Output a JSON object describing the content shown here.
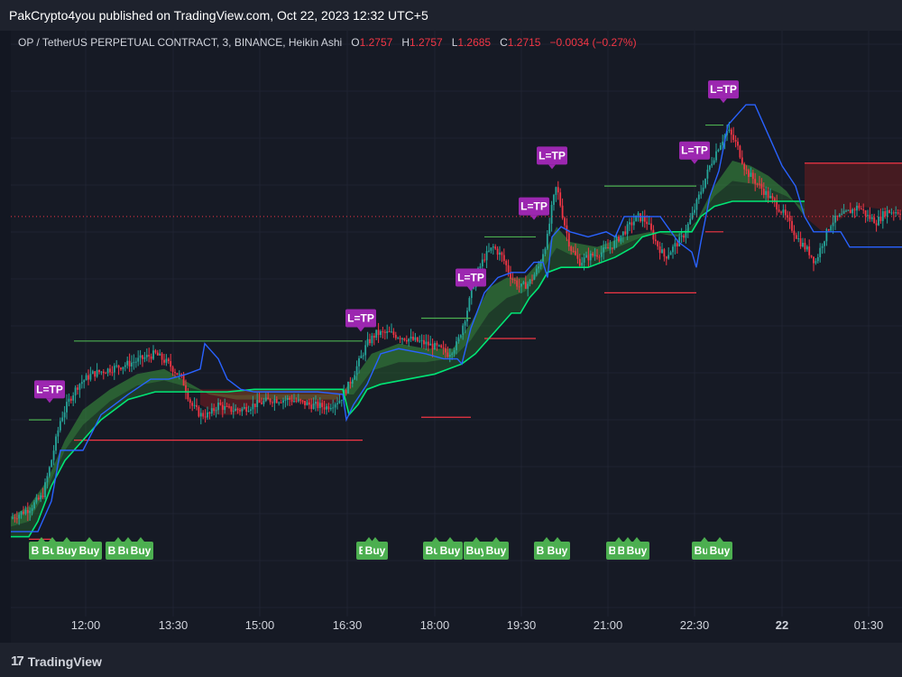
{
  "header": {
    "published": "PakCrypto4you published on TradingView.com, Oct 22, 2023 12:32 UTC+5"
  },
  "legend": {
    "symbol": "OP / TetherUS PERPETUAL CONTRACT, 3, BINANCE, Heikin Ashi",
    "o_label": "O",
    "o": "1.2757",
    "h_label": "H",
    "h": "1.2757",
    "l_label": "L",
    "l": "1.2685",
    "c_label": "C",
    "c": "1.2715",
    "change": "−0.0034 (−0.27%)"
  },
  "footer": {
    "brand": "TradingView"
  },
  "colors": {
    "background": "#131722",
    "panel": "#161a25",
    "grid": "#1f2331",
    "bull": "#26a69a",
    "bull_bright": "#4caf50",
    "bear": "#f23645",
    "blue_line": "#2962ff",
    "green_line": "#00e676",
    "label_purple": "#9c27b0",
    "label_green": "#4caf50"
  },
  "chart_data": {
    "type": "line",
    "xlabel": "",
    "ylabel": "",
    "x_range": [
      0,
      988
    ],
    "y_range": [
      0,
      100
    ],
    "grid": true,
    "x_ticks": [
      {
        "x": 83,
        "label": "12:00",
        "bold": false
      },
      {
        "x": 180,
        "label": "13:30",
        "bold": false
      },
      {
        "x": 276,
        "label": "15:00",
        "bold": false
      },
      {
        "x": 373,
        "label": "16:30",
        "bold": false
      },
      {
        "x": 470,
        "label": "18:00",
        "bold": false
      },
      {
        "x": 566,
        "label": "19:30",
        "bold": false
      },
      {
        "x": 662,
        "label": "21:00",
        "bold": false
      },
      {
        "x": 758,
        "label": "22:30",
        "bold": false
      },
      {
        "x": 855,
        "label": "22",
        "bold": true
      },
      {
        "x": 951,
        "label": "01:30",
        "bold": false
      }
    ],
    "price_series": [
      [
        0,
        10.6
      ],
      [
        20,
        12.5
      ],
      [
        35,
        15
      ],
      [
        45,
        22
      ],
      [
        55,
        30
      ],
      [
        65,
        34
      ],
      [
        75,
        37
      ],
      [
        90,
        39
      ],
      [
        110,
        40
      ],
      [
        130,
        41
      ],
      [
        145,
        42
      ],
      [
        160,
        43
      ],
      [
        175,
        41
      ],
      [
        190,
        38
      ],
      [
        200,
        33
      ],
      [
        210,
        31
      ],
      [
        220,
        31
      ],
      [
        230,
        33
      ],
      [
        240,
        32
      ],
      [
        255,
        32
      ],
      [
        270,
        33
      ],
      [
        290,
        34
      ],
      [
        310,
        34
      ],
      [
        330,
        33
      ],
      [
        350,
        32.5
      ],
      [
        365,
        34
      ],
      [
        375,
        37
      ],
      [
        385,
        41
      ],
      [
        395,
        45
      ],
      [
        405,
        47
      ],
      [
        420,
        47
      ],
      [
        440,
        46
      ],
      [
        460,
        45
      ],
      [
        475,
        44
      ],
      [
        485,
        43
      ],
      [
        495,
        45
      ],
      [
        505,
        51
      ],
      [
        515,
        58
      ],
      [
        525,
        62
      ],
      [
        535,
        64
      ],
      [
        545,
        62
      ],
      [
        555,
        58
      ],
      [
        565,
        56
      ],
      [
        575,
        57
      ],
      [
        585,
        60
      ],
      [
        595,
        66
      ],
      [
        600,
        72
      ],
      [
        605,
        76
      ],
      [
        612,
        70
      ],
      [
        620,
        64
      ],
      [
        630,
        61
      ],
      [
        640,
        62
      ],
      [
        655,
        63
      ],
      [
        665,
        64
      ],
      [
        675,
        66
      ],
      [
        685,
        68
      ],
      [
        695,
        70
      ],
      [
        705,
        69
      ],
      [
        715,
        65
      ],
      [
        725,
        62
      ],
      [
        735,
        64
      ],
      [
        745,
        66
      ],
      [
        755,
        70
      ],
      [
        765,
        75
      ],
      [
        775,
        80
      ],
      [
        785,
        84
      ],
      [
        795,
        87
      ],
      [
        805,
        84
      ],
      [
        815,
        79
      ],
      [
        825,
        77
      ],
      [
        835,
        75
      ],
      [
        845,
        73
      ],
      [
        855,
        71
      ],
      [
        865,
        68
      ],
      [
        875,
        65
      ],
      [
        885,
        63
      ],
      [
        892,
        61
      ],
      [
        900,
        65
      ],
      [
        910,
        69
      ],
      [
        920,
        70
      ],
      [
        930,
        71
      ],
      [
        940,
        72
      ],
      [
        950,
        70
      ],
      [
        960,
        69
      ],
      [
        970,
        71
      ],
      [
        980,
        71
      ],
      [
        988,
        71
      ]
    ],
    "blue_line": [
      [
        0,
        8
      ],
      [
        30,
        8
      ],
      [
        45,
        14
      ],
      [
        55,
        24
      ],
      [
        80,
        24
      ],
      [
        100,
        31
      ],
      [
        130,
        35
      ],
      [
        155,
        38
      ],
      [
        175,
        38
      ],
      [
        195,
        39
      ],
      [
        210,
        40
      ],
      [
        215,
        45
      ],
      [
        220,
        44
      ],
      [
        230,
        42
      ],
      [
        240,
        38
      ],
      [
        255,
        36
      ],
      [
        270,
        35.5
      ],
      [
        300,
        35.5
      ],
      [
        340,
        35.5
      ],
      [
        368,
        35
      ],
      [
        372,
        30
      ],
      [
        380,
        33
      ],
      [
        395,
        37
      ],
      [
        410,
        43
      ],
      [
        430,
        44
      ],
      [
        460,
        43
      ],
      [
        480,
        42
      ],
      [
        495,
        42
      ],
      [
        500,
        41
      ],
      [
        510,
        48
      ],
      [
        525,
        55
      ],
      [
        540,
        58
      ],
      [
        555,
        59
      ],
      [
        570,
        59
      ],
      [
        580,
        61
      ],
      [
        590,
        61
      ],
      [
        595,
        58
      ],
      [
        600,
        66
      ],
      [
        610,
        68
      ],
      [
        620,
        67
      ],
      [
        640,
        66
      ],
      [
        660,
        67
      ],
      [
        670,
        66
      ],
      [
        680,
        70
      ],
      [
        700,
        70
      ],
      [
        720,
        70
      ],
      [
        740,
        65
      ],
      [
        755,
        63
      ],
      [
        760,
        60
      ],
      [
        765,
        65
      ],
      [
        775,
        74
      ],
      [
        785,
        79
      ],
      [
        795,
        88
      ],
      [
        805,
        90
      ],
      [
        815,
        92
      ],
      [
        825,
        92
      ],
      [
        835,
        88
      ],
      [
        845,
        84
      ],
      [
        855,
        80
      ],
      [
        870,
        76
      ],
      [
        880,
        70
      ],
      [
        890,
        67
      ],
      [
        900,
        67
      ],
      [
        920,
        67
      ],
      [
        930,
        64
      ],
      [
        940,
        64
      ],
      [
        988,
        64
      ]
    ],
    "green_line": [
      [
        0,
        7
      ],
      [
        20,
        7
      ],
      [
        30,
        10
      ],
      [
        45,
        17
      ],
      [
        60,
        22
      ],
      [
        80,
        26
      ],
      [
        100,
        30
      ],
      [
        130,
        34
      ],
      [
        160,
        35.5
      ],
      [
        200,
        35.5
      ],
      [
        240,
        35.5
      ],
      [
        270,
        36
      ],
      [
        300,
        36
      ],
      [
        340,
        36
      ],
      [
        368,
        36
      ],
      [
        375,
        31
      ],
      [
        385,
        33
      ],
      [
        395,
        36
      ],
      [
        410,
        37
      ],
      [
        440,
        38
      ],
      [
        470,
        39
      ],
      [
        500,
        41
      ],
      [
        515,
        43
      ],
      [
        525,
        45
      ],
      [
        540,
        48
      ],
      [
        555,
        51
      ],
      [
        565,
        51
      ],
      [
        575,
        54
      ],
      [
        585,
        56
      ],
      [
        595,
        59
      ],
      [
        610,
        60
      ],
      [
        640,
        60
      ],
      [
        670,
        62
      ],
      [
        690,
        64
      ],
      [
        700,
        66
      ],
      [
        720,
        67
      ],
      [
        740,
        67
      ],
      [
        755,
        67
      ],
      [
        765,
        70
      ],
      [
        780,
        72
      ],
      [
        800,
        73
      ],
      [
        830,
        73
      ],
      [
        860,
        73
      ],
      [
        880,
        73
      ]
    ],
    "area_upper": [
      [
        0,
        11
      ],
      [
        20,
        13
      ],
      [
        40,
        18
      ],
      [
        60,
        26
      ],
      [
        80,
        32
      ],
      [
        110,
        36
      ],
      [
        140,
        39
      ],
      [
        170,
        40
      ],
      [
        200,
        37
      ],
      [
        220,
        35
      ],
      [
        250,
        34
      ],
      [
        280,
        34
      ],
      [
        320,
        34
      ],
      [
        360,
        34
      ],
      [
        380,
        38
      ],
      [
        400,
        43
      ],
      [
        430,
        45
      ],
      [
        460,
        44
      ],
      [
        490,
        44
      ],
      [
        510,
        49
      ],
      [
        530,
        56
      ],
      [
        550,
        58
      ],
      [
        570,
        58
      ],
      [
        590,
        62
      ],
      [
        605,
        68
      ],
      [
        620,
        65
      ],
      [
        650,
        64
      ],
      [
        680,
        66
      ],
      [
        710,
        67
      ],
      [
        740,
        66
      ],
      [
        760,
        69
      ],
      [
        780,
        76
      ],
      [
        800,
        81
      ],
      [
        820,
        80
      ],
      [
        840,
        78
      ],
      [
        860,
        75
      ],
      [
        880,
        70
      ],
      [
        900,
        67
      ],
      [
        930,
        70
      ],
      [
        960,
        71
      ],
      [
        988,
        71
      ]
    ],
    "red_area": [
      [
        210,
        33
      ],
      [
        230,
        31
      ],
      [
        250,
        31
      ],
      [
        270,
        33
      ],
      [
        290,
        34
      ],
      [
        310,
        34
      ],
      [
        330,
        33
      ],
      [
        350,
        32.5
      ],
      [
        365,
        34
      ],
      [
        368,
        36
      ],
      [
        340,
        36
      ],
      [
        300,
        36
      ],
      [
        270,
        36
      ],
      [
        240,
        36
      ],
      [
        210,
        36
      ]
    ],
    "levels": [
      {
        "x1": 20,
        "x2": 45,
        "y": 30,
        "color": "green"
      },
      {
        "x1": 70,
        "x2": 390,
        "y": 45.5,
        "color": "green"
      },
      {
        "x1": 70,
        "x2": 390,
        "y": 26,
        "color": "red"
      },
      {
        "x1": 20,
        "x2": 45,
        "y": 6.5,
        "color": "red"
      },
      {
        "x1": 455,
        "x2": 510,
        "y": 50,
        "color": "green"
      },
      {
        "x1": 455,
        "x2": 510,
        "y": 30.5,
        "color": "red"
      },
      {
        "x1": 525,
        "x2": 582,
        "y": 66,
        "color": "green"
      },
      {
        "x1": 525,
        "x2": 582,
        "y": 46,
        "color": "red"
      },
      {
        "x1": 658,
        "x2": 760,
        "y": 76,
        "color": "green"
      },
      {
        "x1": 658,
        "x2": 760,
        "y": 55,
        "color": "red"
      },
      {
        "x1": 770,
        "x2": 790,
        "y": 88,
        "color": "green"
      },
      {
        "x1": 770,
        "x2": 790,
        "y": 67,
        "color": "red"
      },
      {
        "x1": 880,
        "x2": 988,
        "y": 80.5,
        "color": "red"
      }
    ],
    "price_line_y": 70,
    "tp_labels": [
      {
        "x": 43,
        "y": 36,
        "text": "L=TP"
      },
      {
        "x": 388,
        "y": 50,
        "text": "L=TP"
      },
      {
        "x": 510,
        "y": 58,
        "text": "L=TP"
      },
      {
        "x": 580,
        "y": 72,
        "text": "L=TP"
      },
      {
        "x": 600,
        "y": 82,
        "text": "L=TP"
      },
      {
        "x": 758,
        "y": 83,
        "text": "L=TP"
      },
      {
        "x": 790,
        "y": 95,
        "text": "L=TP"
      }
    ],
    "buy_labels": [
      {
        "x": 20,
        "text": "Buy"
      },
      {
        "x": 32,
        "text": "Buy"
      },
      {
        "x": 48,
        "text": "Buy"
      },
      {
        "x": 73,
        "text": "Buy"
      },
      {
        "x": 105,
        "text": "Buy"
      },
      {
        "x": 116,
        "text": "Buy"
      },
      {
        "x": 130,
        "text": "Buy"
      },
      {
        "x": 383,
        "text": "Buy"
      },
      {
        "x": 390,
        "text": "Buy"
      },
      {
        "x": 457,
        "text": "Buy"
      },
      {
        "x": 473,
        "text": "Buy"
      },
      {
        "x": 502,
        "text": "Buy"
      },
      {
        "x": 524,
        "text": "Buy"
      },
      {
        "x": 580,
        "text": "Buy"
      },
      {
        "x": 592,
        "text": "Buy"
      },
      {
        "x": 660,
        "text": "Buy"
      },
      {
        "x": 670,
        "text": "Buy"
      },
      {
        "x": 680,
        "text": "Buy"
      },
      {
        "x": 755,
        "text": "Buy"
      },
      {
        "x": 772,
        "text": "Buy"
      }
    ]
  }
}
